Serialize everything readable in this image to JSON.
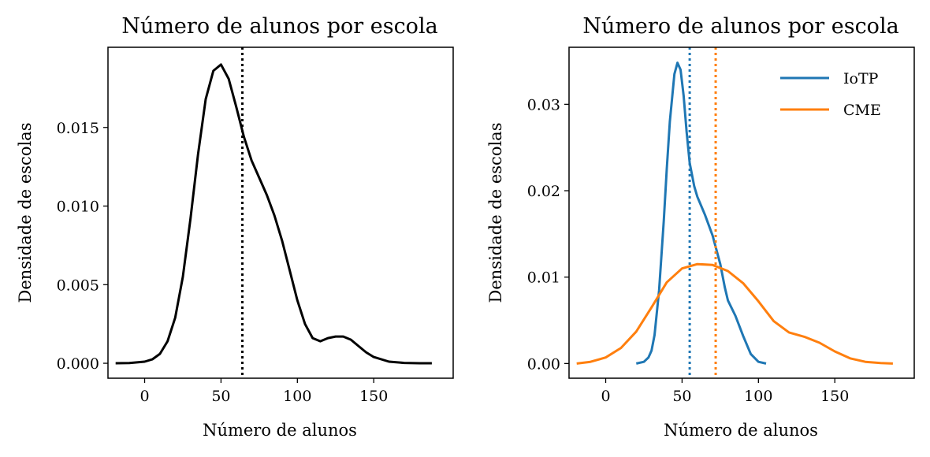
{
  "chart_data": [
    {
      "type": "line",
      "title": "Número de alunos por escola",
      "xlabel": "Número de alunos",
      "ylabel": "Densidade de escolas",
      "xlim": [
        -24,
        202
      ],
      "ylim": [
        -0.00095,
        0.0201
      ],
      "xticks": [
        0,
        50,
        100,
        150
      ],
      "xtick_labels": [
        "0",
        "50",
        "100",
        "150"
      ],
      "yticks": [
        0.0,
        0.005,
        0.01,
        0.015
      ],
      "ytick_labels": [
        "0.000",
        "0.005",
        "0.010",
        "0.015"
      ],
      "grid": false,
      "series": [
        {
          "color": "#000000",
          "x": [
            -19,
            -10,
            0,
            5,
            10,
            15,
            20,
            25,
            30,
            35,
            40,
            45,
            50,
            55,
            60,
            65,
            70,
            75,
            80,
            85,
            90,
            95,
            100,
            105,
            110,
            115,
            120,
            125,
            130,
            135,
            140,
            145,
            150,
            160,
            170,
            180,
            188
          ],
          "y": [
            0.0,
            1e-05,
            0.0001,
            0.00025,
            0.0006,
            0.0014,
            0.0029,
            0.0055,
            0.0092,
            0.0133,
            0.0168,
            0.0186,
            0.019,
            0.0181,
            0.0163,
            0.0144,
            0.0129,
            0.0118,
            0.0107,
            0.0094,
            0.0078,
            0.0059,
            0.004,
            0.0025,
            0.0016,
            0.0014,
            0.0016,
            0.0017,
            0.0017,
            0.0015,
            0.0011,
            0.0007,
            0.0004,
            0.0001,
            2e-05,
            0.0,
            0.0
          ]
        }
      ],
      "vlines": [
        {
          "x": 64,
          "color": "#000000",
          "style": "dotted"
        }
      ]
    },
    {
      "type": "line",
      "title": "Número de alunos por escola",
      "xlabel": "Número de alunos",
      "ylabel": "Densidade de escolas",
      "xlim": [
        -24,
        202
      ],
      "ylim": [
        -0.0017,
        0.0366
      ],
      "xticks": [
        0,
        50,
        100,
        150
      ],
      "xtick_labels": [
        "0",
        "50",
        "100",
        "150"
      ],
      "yticks": [
        0.0,
        0.01,
        0.02,
        0.03
      ],
      "ytick_labels": [
        "0.00",
        "0.01",
        "0.02",
        "0.03"
      ],
      "grid": false,
      "legend_position": "top-right",
      "series": [
        {
          "name": "IoTP",
          "color": "#1f77b4",
          "x": [
            20,
            25,
            28,
            30,
            32,
            35,
            38,
            40,
            42,
            45,
            47,
            49,
            51,
            53,
            55,
            58,
            60,
            65,
            70,
            75,
            78,
            80,
            85,
            90,
            95,
            100,
            105
          ],
          "y": [
            0.0,
            0.0002,
            0.0007,
            0.0015,
            0.0033,
            0.0085,
            0.0165,
            0.0225,
            0.028,
            0.0335,
            0.0348,
            0.034,
            0.031,
            0.0268,
            0.0232,
            0.0205,
            0.0193,
            0.0172,
            0.0148,
            0.0115,
            0.0088,
            0.0073,
            0.0055,
            0.0032,
            0.0011,
            0.0002,
            0.0
          ]
        },
        {
          "name": "CME",
          "color": "#ff7f0e",
          "x": [
            -19,
            -10,
            0,
            10,
            20,
            30,
            40,
            50,
            60,
            70,
            80,
            90,
            100,
            110,
            120,
            130,
            140,
            150,
            160,
            170,
            180,
            188
          ],
          "y": [
            0.0,
            0.0002,
            0.0007,
            0.0018,
            0.0037,
            0.0065,
            0.0094,
            0.011,
            0.0115,
            0.0114,
            0.0107,
            0.0093,
            0.0072,
            0.0049,
            0.0036,
            0.0031,
            0.0024,
            0.0014,
            0.0006,
            0.0002,
            5e-05,
            0.0
          ]
        }
      ],
      "vlines": [
        {
          "x": 55,
          "color": "#1f77b4",
          "style": "dotted"
        },
        {
          "x": 72,
          "color": "#ff7f0e",
          "style": "dotted"
        }
      ]
    }
  ]
}
